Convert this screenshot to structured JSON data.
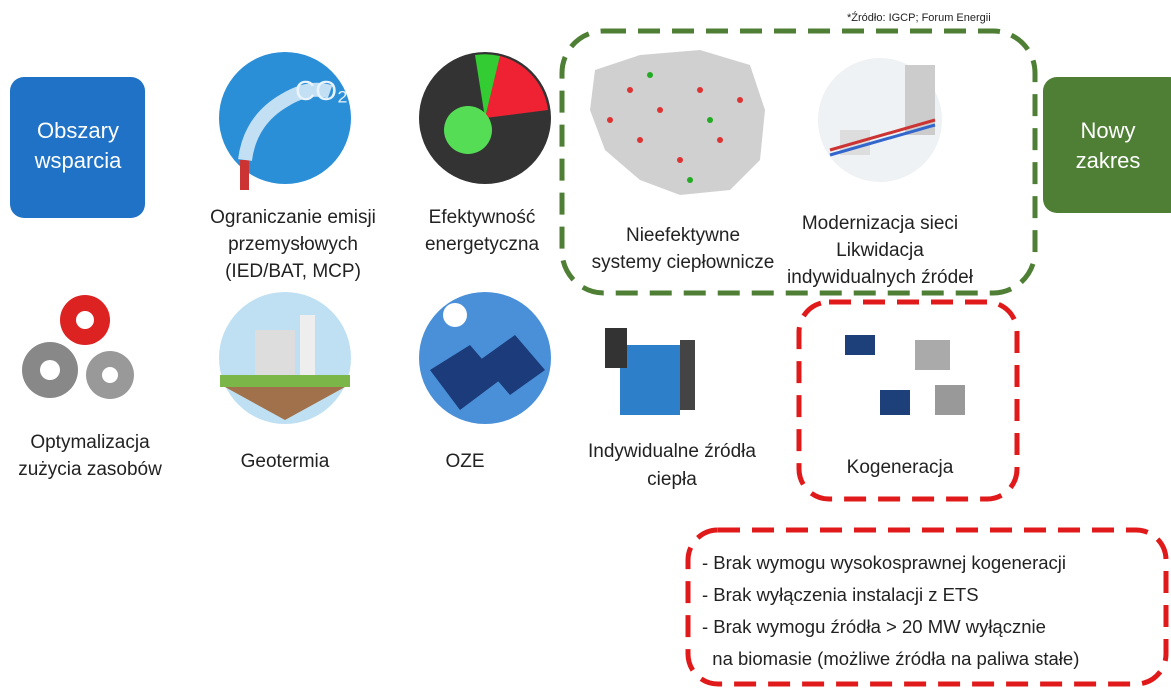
{
  "source": "*Źródło: IGCP; Forum Energii",
  "left_box": {
    "lines": [
      "Obszary",
      "wsparcia"
    ]
  },
  "right_box": {
    "lines": [
      "Nowy",
      "zakres"
    ]
  },
  "items": [
    {
      "lines": [
        "Ograniczanie emisji",
        "przemysłowych",
        "(IED/BAT, MCP)"
      ]
    },
    {
      "lines": [
        "Efektywność",
        "energetyczna"
      ]
    },
    {
      "lines": [
        "Nieefektywne",
        "systemy ciepłownicze"
      ]
    },
    {
      "lines": [
        "Modernizacja sieci",
        "Likwidacja",
        "indywidualnych źródeł"
      ]
    },
    {
      "lines": [
        "Optymalizacja",
        "zużycia zasobów"
      ]
    },
    {
      "lines": [
        "Geotermia"
      ]
    },
    {
      "lines": [
        "OZE"
      ]
    },
    {
      "lines": [
        "Indywidualne źródła",
        "ciepła"
      ]
    },
    {
      "lines": [
        "Kogeneracja"
      ]
    }
  ],
  "notes": [
    "- Brak wymogu wysokosprawnej kogeneracji",
    "- Brak wyłączenia instalacji z ETS",
    "- Brak wymogu źródła > 20 MW wyłącznie",
    "  na biomasie (możliwe źródła na paliwa stałe)"
  ]
}
